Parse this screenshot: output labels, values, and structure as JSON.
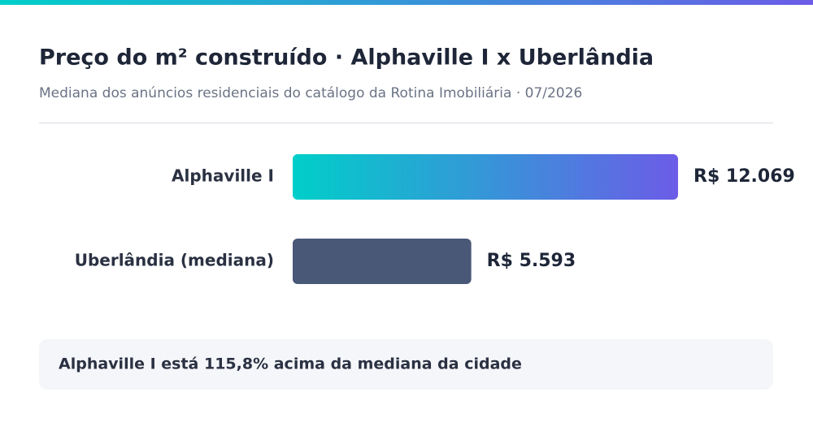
{
  "chart_data": {
    "type": "hbar",
    "title": "Preço do m² construído · Alphaville I x Uberlândia",
    "subtitle": "Mediana dos anúncios residenciais do catálogo da Rotina Imobiliária · 07/2026",
    "categories": [
      "Alphaville I",
      "Uberlândia (mediana)"
    ],
    "values": [
      12069,
      5593
    ],
    "value_labels": [
      "R$ 12.069",
      "R$ 5.593"
    ],
    "colors": [
      [
        "#00cfc9",
        "#6c5ce7"
      ],
      "#4a5878"
    ],
    "annotation": "Alphaville I está 115,8% acima da mediana da cidade"
  }
}
